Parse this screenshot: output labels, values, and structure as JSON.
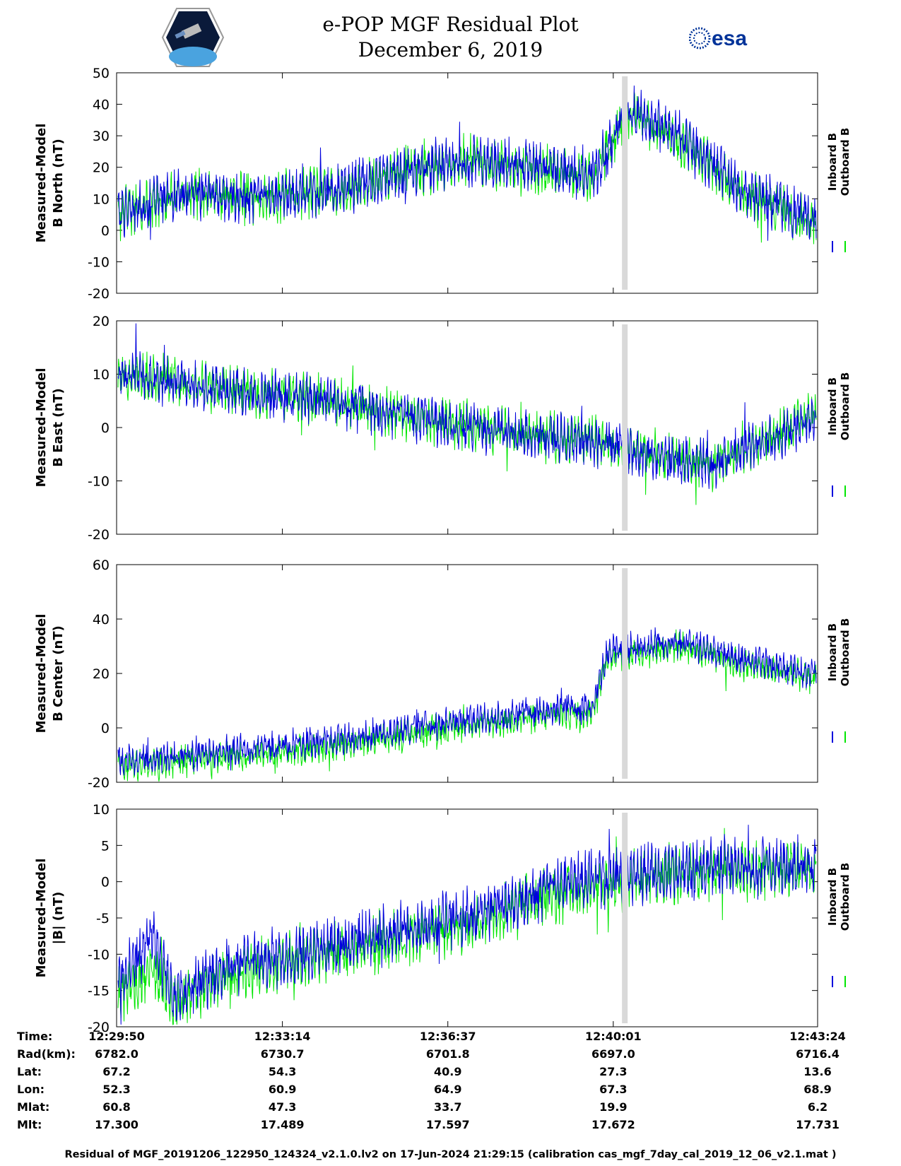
{
  "header": {
    "title": "e-POP MGF Residual Plot",
    "date": "December 6, 2019",
    "logo_left": "cassiope-logo",
    "logo_right_text": "esa"
  },
  "colors": {
    "inboard": "#0000dd",
    "outboard": "#00e600",
    "gap": "#d9d9d9"
  },
  "chart_data": [
    {
      "type": "line",
      "ylabel_line1": "Measured-Model",
      "ylabel_line2": "B North (nT)",
      "ylim": [
        -20,
        50
      ],
      "yticks": [
        -20,
        -10,
        0,
        10,
        20,
        30,
        40,
        50
      ],
      "series": [
        {
          "name": "Inboard B",
          "trend_x": [
            0,
            0.1,
            0.2,
            0.3,
            0.4,
            0.5,
            0.6,
            0.68,
            0.73,
            0.8,
            0.9,
            1.0
          ],
          "trend_y": [
            5,
            12,
            10,
            12,
            18,
            22,
            20,
            17,
            38,
            30,
            12,
            3
          ],
          "noise": 7
        },
        {
          "name": "Outboard B",
          "trend_x": [
            0,
            0.1,
            0.2,
            0.3,
            0.4,
            0.5,
            0.6,
            0.68,
            0.73,
            0.8,
            0.9,
            1.0
          ],
          "trend_y": [
            5,
            12,
            10,
            12,
            18,
            22,
            20,
            17,
            37,
            29,
            11,
            2
          ],
          "noise": 7
        }
      ]
    },
    {
      "type": "line",
      "ylabel_line1": "Measured-Model",
      "ylabel_line2": "B East (nT)",
      "ylim": [
        -20,
        20
      ],
      "yticks": [
        -20,
        -10,
        0,
        10,
        20
      ],
      "series": [
        {
          "name": "Inboard B",
          "trend_x": [
            0,
            0.1,
            0.3,
            0.5,
            0.7,
            0.8,
            0.85,
            0.9,
            1.0
          ],
          "trend_y": [
            10,
            8,
            5,
            0,
            -3,
            -6,
            -7,
            -4,
            2
          ],
          "noise": 4
        },
        {
          "name": "Outboard B",
          "trend_x": [
            0,
            0.1,
            0.3,
            0.5,
            0.7,
            0.8,
            0.85,
            0.9,
            1.0
          ],
          "trend_y": [
            10,
            8,
            5,
            0,
            -3,
            -6,
            -7,
            -4,
            2
          ],
          "noise": 4
        }
      ]
    },
    {
      "type": "line",
      "ylabel_line1": "Measured-Model",
      "ylabel_line2": "B Center (nT)",
      "ylim": [
        -20,
        60
      ],
      "yticks": [
        -20,
        0,
        20,
        40,
        60
      ],
      "series": [
        {
          "name": "Inboard B",
          "trend_x": [
            0,
            0.1,
            0.3,
            0.5,
            0.68,
            0.7,
            0.75,
            0.8,
            0.9,
            1.0
          ],
          "trend_y": [
            -12,
            -10,
            -5,
            3,
            8,
            28,
            30,
            32,
            25,
            20
          ],
          "noise": 5
        },
        {
          "name": "Outboard B",
          "trend_x": [
            0,
            0.1,
            0.3,
            0.5,
            0.68,
            0.7,
            0.75,
            0.8,
            0.9,
            1.0
          ],
          "trend_y": [
            -14,
            -12,
            -7,
            1,
            6,
            26,
            28,
            30,
            23,
            18
          ],
          "noise": 5
        }
      ]
    },
    {
      "type": "line",
      "ylabel_line1": "Measured-Model",
      "ylabel_line2": "|B| (nT)",
      "ylim": [
        -20,
        10
      ],
      "yticks": [
        -20,
        -15,
        -10,
        -5,
        0,
        5,
        10
      ],
      "series": [
        {
          "name": "Inboard B",
          "trend_x": [
            0,
            0.05,
            0.08,
            0.15,
            0.3,
            0.5,
            0.65,
            0.75,
            0.85,
            1.0
          ],
          "trend_y": [
            -14,
            -8,
            -16,
            -12,
            -9,
            -5,
            0,
            1,
            2,
            2
          ],
          "noise": 3.5
        },
        {
          "name": "Outboard B",
          "trend_x": [
            0,
            0.05,
            0.08,
            0.15,
            0.3,
            0.5,
            0.65,
            0.75,
            0.85,
            1.0
          ],
          "trend_y": [
            -16,
            -12,
            -17,
            -13,
            -10,
            -6,
            -1,
            0.5,
            1.5,
            1.5
          ],
          "noise": 3.5
        }
      ]
    }
  ],
  "legend": {
    "inboard": "Inboard B",
    "outboard": "Outboard B"
  },
  "data_gap_fraction": 0.725,
  "ephemeris": {
    "labels": [
      "Time:",
      "Rad(km):",
      "Lat:",
      "Lon:",
      "Mlat:",
      "Mlt:"
    ],
    "columns": [
      {
        "Time": "12:29:50",
        "Rad": "6782.0",
        "Lat": "67.2",
        "Lon": "52.3",
        "Mlat": "60.8",
        "Mlt": "17.300"
      },
      {
        "Time": "12:33:14",
        "Rad": "6730.7",
        "Lat": "54.3",
        "Lon": "60.9",
        "Mlat": "47.3",
        "Mlt": "17.489"
      },
      {
        "Time": "12:36:37",
        "Rad": "6701.8",
        "Lat": "40.9",
        "Lon": "64.9",
        "Mlat": "33.7",
        "Mlt": "17.597"
      },
      {
        "Time": "12:40:01",
        "Rad": "6697.0",
        "Lat": "27.3",
        "Lon": "67.3",
        "Mlat": "19.9",
        "Mlt": "17.672"
      },
      {
        "Time": "12:43:24",
        "Rad": "6716.4",
        "Lat": "13.6",
        "Lon": "68.9",
        "Mlat": "6.2",
        "Mlt": "17.731"
      }
    ]
  },
  "footer": "Residual of MGF_20191206_122950_124324_v2.1.0.lv2 on 17-Jun-2024 21:29:15 (calibration cas_mgf_7day_cal_2019_12_06_v2.1.mat )"
}
